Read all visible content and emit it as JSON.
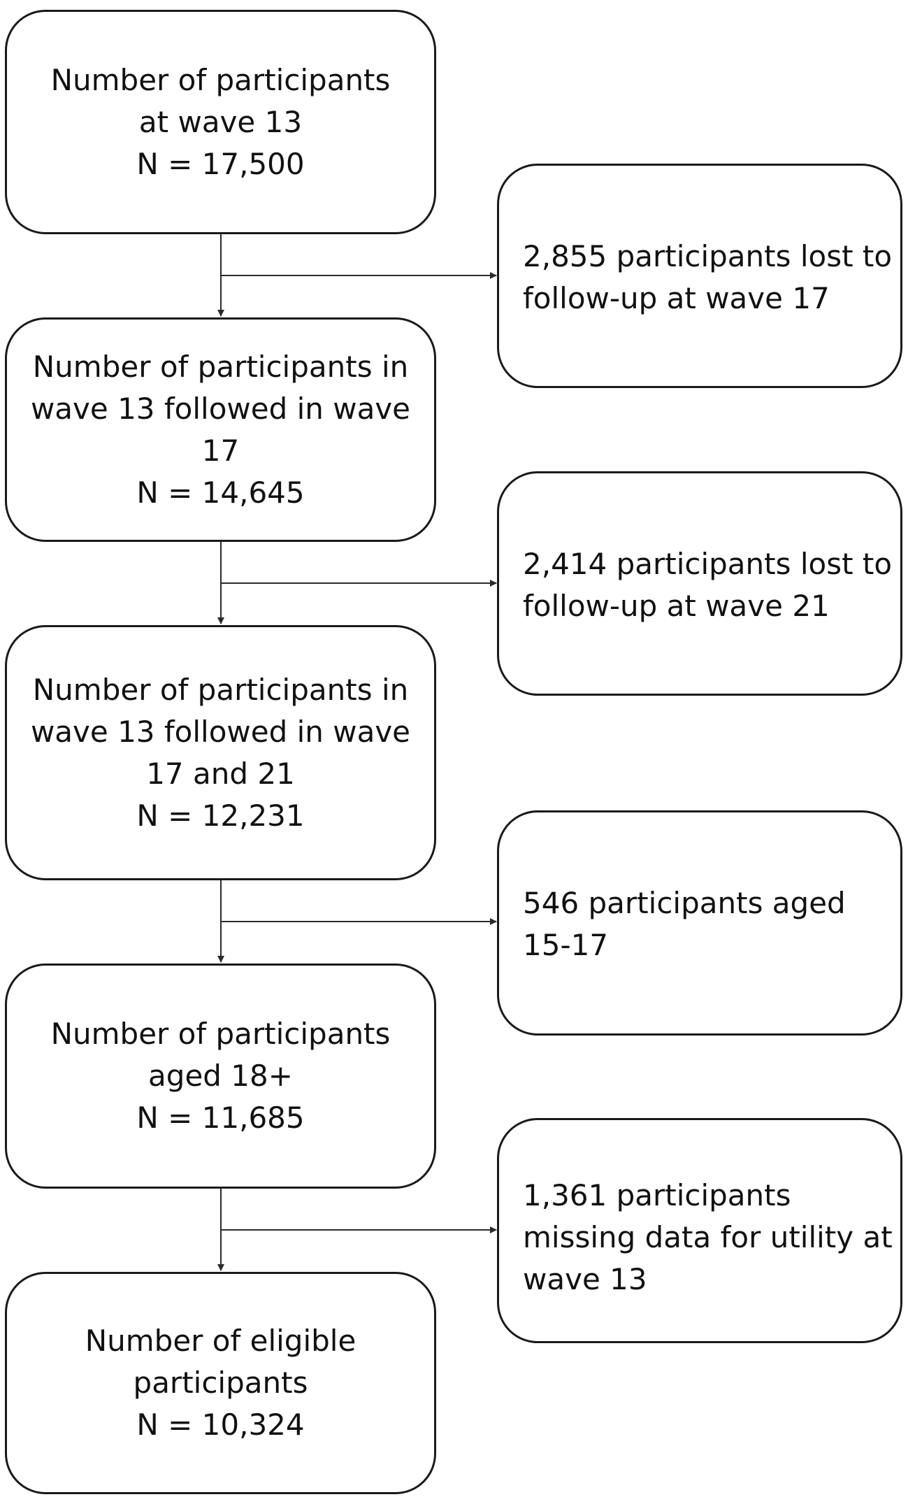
{
  "main_boxes": [
    {
      "lines": [
        "Number of participants",
        "at wave 13",
        "N = 17,500"
      ]
    },
    {
      "lines": [
        "Number of participants in",
        "wave 13 followed in wave",
        "17",
        "N = 14,645"
      ]
    },
    {
      "lines": [
        "Number of participants in",
        "wave 13 followed in wave",
        "17 and 21",
        "N = 12,231"
      ]
    },
    {
      "lines": [
        "Number of participants",
        "aged 18+",
        "N = 11,685"
      ]
    },
    {
      "lines": [
        "Number of eligible",
        "participants",
        "N = 10,324"
      ]
    }
  ],
  "side_boxes": [
    {
      "lines": [
        "2,855 participants lost to",
        "follow-up at wave 17"
      ]
    },
    {
      "lines": [
        "2,414 participants lost to",
        "follow-up at wave 21"
      ]
    },
    {
      "lines": [
        "546 participants aged",
        "15-17"
      ]
    },
    {
      "lines": [
        "1,361 participants",
        "missing data for utility at",
        "wave 13"
      ]
    }
  ],
  "colors": {
    "border": "#1a1a1a",
    "connector": "#2b2b2b",
    "background": "#ffffff"
  }
}
